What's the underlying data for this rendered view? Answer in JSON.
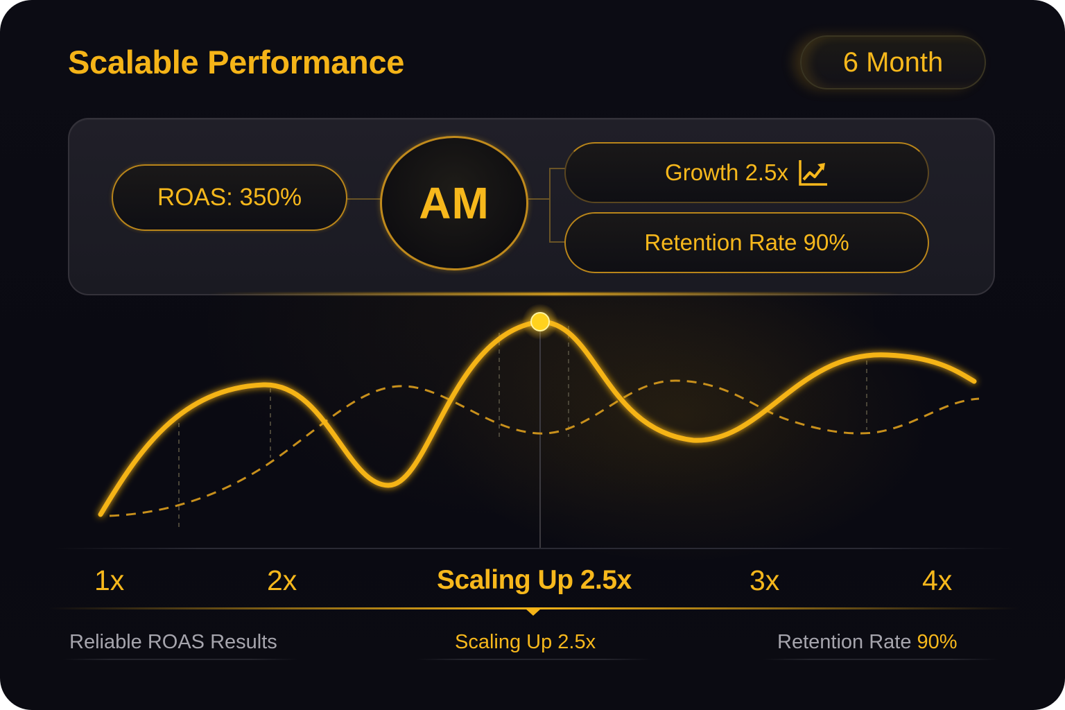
{
  "header": {
    "title": "Scalable Performance",
    "period_button": "6 Month"
  },
  "summary": {
    "roas": "ROAS: 350%",
    "hub": "AM",
    "growth": "Growth 2.5x",
    "growth_icon": "trending-up-icon",
    "retention": "Retention Rate 90%"
  },
  "chart_data": {
    "type": "line",
    "series": [
      {
        "style": "solid",
        "color": "#f5b418"
      },
      {
        "style": "dashed",
        "color": "#c8901c"
      }
    ],
    "highlight_point": "peak",
    "x_tick_labels": [
      "1x",
      "2x",
      "Scaling Up 2.5x",
      "3x",
      "4x"
    ],
    "highlighted_tick": "Scaling Up 2.5x"
  },
  "footer": {
    "left": "Reliable ROAS Results",
    "center": "Scaling Up 2.5x",
    "right_prefix": "Retention Rate ",
    "right_value": "90%"
  },
  "colors": {
    "accent": "#f5b418",
    "background": "#0b0b12",
    "muted_text": "#a6a5ad"
  }
}
